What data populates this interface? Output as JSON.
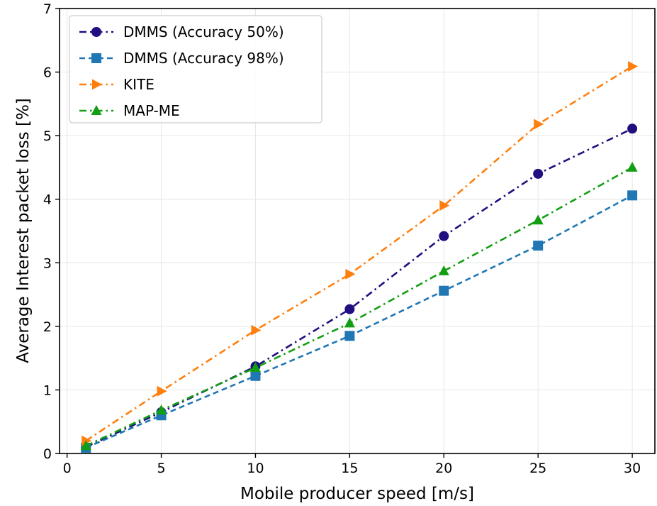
{
  "chart_data": {
    "type": "line",
    "title": "",
    "xlabel": "Mobile producer speed [m/s]",
    "ylabel": "Average Interest packet loss [%]",
    "xlim": [
      -0.4,
      31.2
    ],
    "ylim": [
      0,
      7
    ],
    "xticks": [
      0,
      5,
      10,
      15,
      20,
      25,
      30
    ],
    "yticks": [
      0,
      1,
      2,
      3,
      4,
      5,
      6,
      7
    ],
    "grid": true,
    "legend_position": "top-left",
    "x": [
      1,
      5,
      10,
      15,
      20,
      25,
      30
    ],
    "series": [
      {
        "name": "DMMS (Accuracy 50%)",
        "values": [
          0.1,
          0.65,
          1.37,
          2.27,
          3.42,
          4.4,
          5.11
        ],
        "color": "#1f0f80",
        "marker": "circle",
        "dash": "dashdot"
      },
      {
        "name": "DMMS (Accuracy 98%)",
        "values": [
          0.09,
          0.6,
          1.22,
          1.85,
          2.56,
          3.27,
          4.06
        ],
        "color": "#1f77b4",
        "marker": "square",
        "dash": "dashed"
      },
      {
        "name": "KITE",
        "values": [
          0.2,
          0.98,
          1.94,
          2.82,
          3.9,
          5.18,
          6.09
        ],
        "color": "#ff7f0e",
        "marker": "triangle-right",
        "dash": "dashdot"
      },
      {
        "name": "MAP-ME",
        "values": [
          0.12,
          0.68,
          1.35,
          2.05,
          2.87,
          3.67,
          4.5
        ],
        "color": "#129e12",
        "marker": "triangle-up",
        "dash": "dashdot"
      }
    ]
  }
}
